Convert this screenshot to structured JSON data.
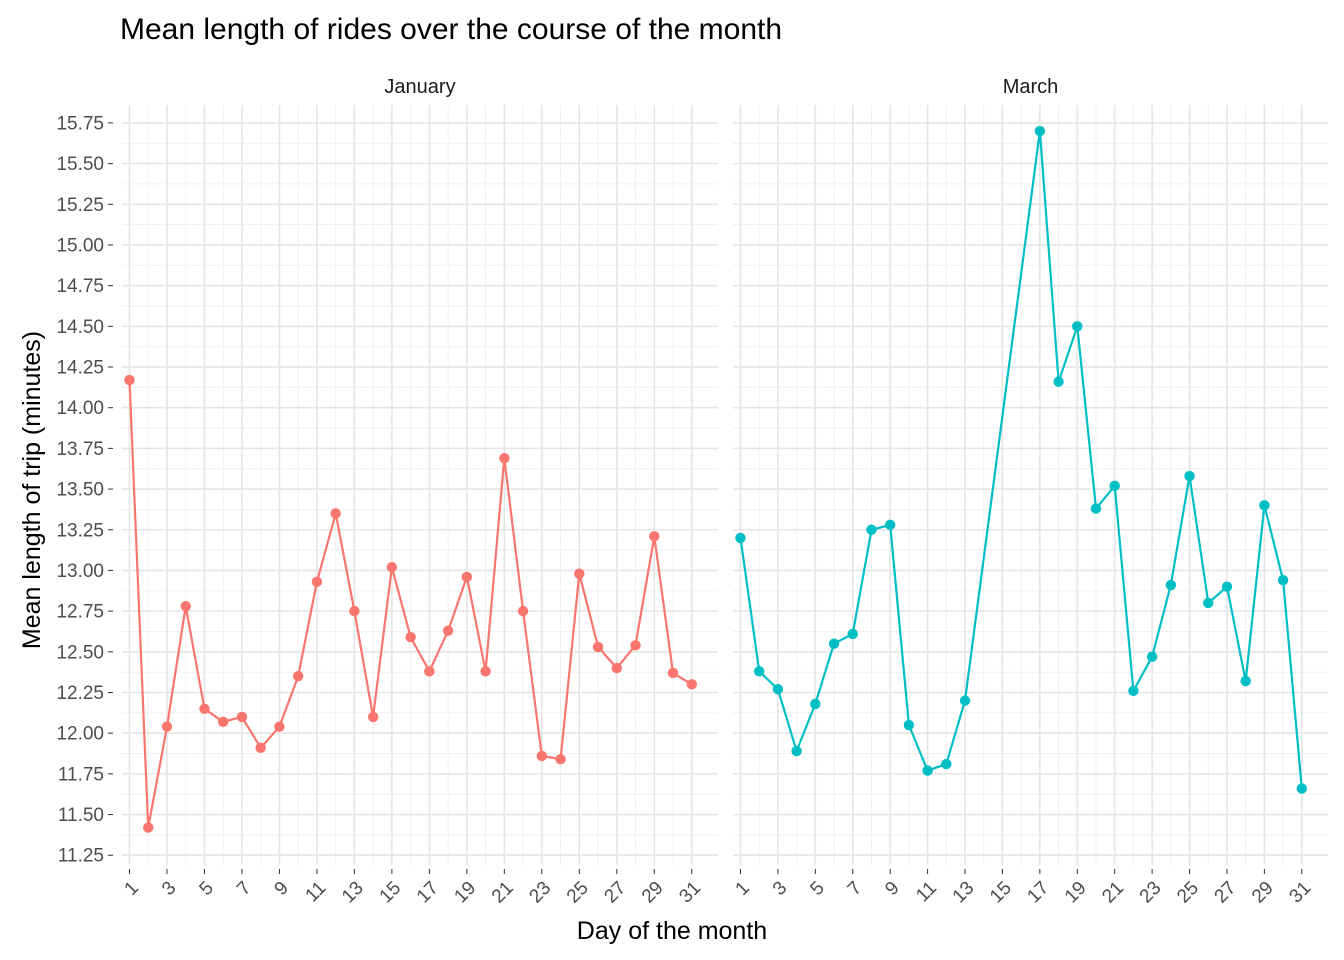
{
  "chart_data": {
    "type": "line",
    "title": "Mean length of rides over the course of the month",
    "xlabel": "Day of the month",
    "ylabel": "Mean length of trip (minutes)",
    "ylim": [
      11.19,
      15.86
    ],
    "xlim": [
      0.6,
      32.4
    ],
    "y_ticks": [
      "11.25",
      "11.50",
      "11.75",
      "12.00",
      "12.25",
      "12.50",
      "12.75",
      "13.00",
      "13.25",
      "13.50",
      "13.75",
      "14.00",
      "14.25",
      "14.50",
      "14.75",
      "15.00",
      "15.25",
      "15.50",
      "15.75"
    ],
    "y_tick_values": [
      11.25,
      11.5,
      11.75,
      12.0,
      12.25,
      12.5,
      12.75,
      13.0,
      13.25,
      13.5,
      13.75,
      14.0,
      14.25,
      14.5,
      14.75,
      15.0,
      15.25,
      15.5,
      15.75
    ],
    "x_ticks": [
      "1",
      "3",
      "5",
      "7",
      "9",
      "11",
      "13",
      "15",
      "17",
      "19",
      "21",
      "23",
      "25",
      "27",
      "29",
      "31"
    ],
    "x_tick_values": [
      1,
      3,
      5,
      7,
      9,
      11,
      13,
      15,
      17,
      19,
      21,
      23,
      25,
      27,
      29,
      31
    ],
    "grid": true,
    "legend": "none",
    "panels": [
      {
        "name": "January",
        "color": "#F8766D",
        "x": [
          1,
          2,
          3,
          4,
          5,
          6,
          7,
          8,
          9,
          10,
          11,
          12,
          13,
          14,
          15,
          16,
          17,
          18,
          19,
          20,
          21,
          22,
          23,
          24,
          25,
          26,
          27,
          28,
          29,
          30,
          31
        ],
        "y": [
          14.17,
          11.42,
          12.04,
          12.78,
          12.15,
          12.07,
          12.1,
          11.91,
          12.04,
          12.35,
          12.93,
          13.35,
          12.75,
          12.1,
          13.02,
          12.59,
          12.38,
          12.63,
          12.96,
          12.38,
          13.69,
          12.75,
          11.86,
          11.84,
          12.98,
          12.53,
          12.4,
          12.54,
          13.21,
          12.37,
          12.3
        ]
      },
      {
        "name": "March",
        "color": "#00BFC4",
        "x": [
          1,
          2,
          3,
          4,
          5,
          6,
          7,
          8,
          9,
          10,
          11,
          12,
          13,
          17,
          18,
          19,
          20,
          21,
          22,
          23,
          24,
          25,
          26,
          27,
          28,
          29,
          30,
          31
        ],
        "y": [
          13.2,
          12.38,
          12.27,
          11.89,
          12.18,
          12.55,
          12.61,
          13.25,
          13.28,
          12.05,
          11.77,
          11.81,
          12.2,
          15.7,
          14.16,
          14.5,
          13.38,
          13.52,
          12.26,
          12.47,
          12.91,
          13.58,
          12.8,
          12.9,
          12.32,
          13.4,
          12.94,
          11.66
        ]
      }
    ]
  }
}
